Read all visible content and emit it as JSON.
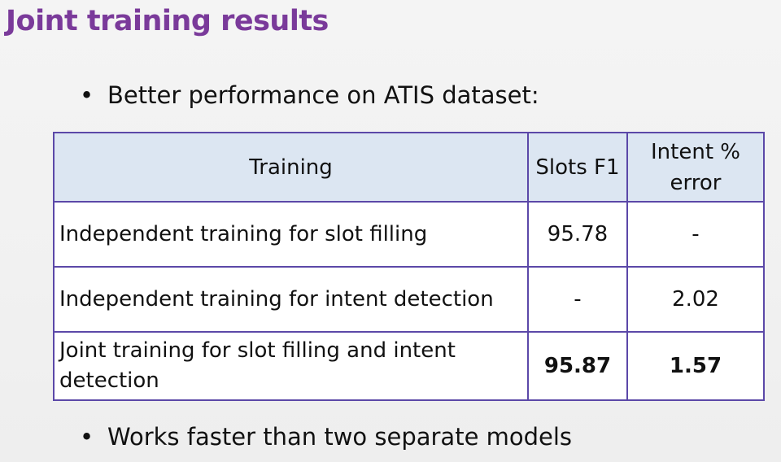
{
  "slide": {
    "title": "Joint training results",
    "bullets": [
      "Better performance on ATIS dataset:",
      "Works faster than two separate models"
    ],
    "bullet_glyph": "•",
    "accent_color": "#7a3a9a",
    "table": {
      "headers": [
        "Training",
        "Slots F1",
        "Intent % error"
      ],
      "rows": [
        {
          "training": "Independent training for slot filling",
          "slots_f1": "95.78",
          "intent_error": "-"
        },
        {
          "training": "Independent training for intent detection",
          "slots_f1": "-",
          "intent_error": "2.02"
        },
        {
          "training": "Joint training for slot filling and intent detection",
          "slots_f1": "95.87",
          "intent_error": "1.57"
        }
      ]
    }
  }
}
